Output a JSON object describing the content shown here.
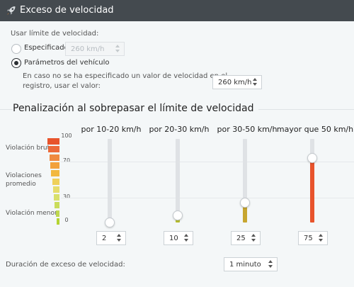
{
  "window": {
    "title": "Exceso de velocidad",
    "icon": "rocket-icon"
  },
  "speed_limit": {
    "label": "Usar límite de velocidad:",
    "option_specified": {
      "label": "Especificado",
      "value": "260  km/h",
      "selected": false
    },
    "option_vehicle": {
      "label": "Parámetros del vehículo",
      "selected": true
    },
    "fallback_text_line1": "En caso no se ha especificado un valor de velocidad en el",
    "fallback_text_line2": "registro, usar el valor:",
    "fallback_value": "260  km/h"
  },
  "penalty": {
    "title": "Penalización al sobrepasar el límite de velocidad",
    "scale_labels": {
      "high": "Violación bruta",
      "mid_line1": "Violaciones",
      "mid_line2": "promedio",
      "low": "Violación menor"
    },
    "scale_ticks": [
      "100",
      "70",
      "30",
      "0"
    ],
    "colors": {
      "low": "#b4d432",
      "high": "#e8542c",
      "track": "#dfe2e5"
    },
    "columns": [
      {
        "heading": "por 10-20 km/h",
        "value": "2",
        "level": 2
      },
      {
        "heading": "por 20-30 km/h",
        "value": "10",
        "level": 10
      },
      {
        "heading": "por 30-50 km/h",
        "value": "25",
        "level": 25
      },
      {
        "heading": "mayor que 50 km/h",
        "value": "75",
        "level": 75
      }
    ]
  },
  "duration": {
    "label": "Duración de exceso de velocidad:",
    "value": "1 minuto"
  }
}
